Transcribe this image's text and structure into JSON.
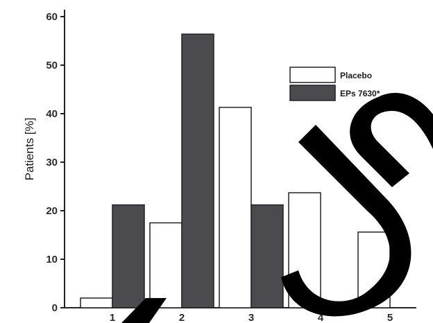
{
  "chart_data": {
    "type": "bar",
    "categories": [
      "1",
      "2",
      "3",
      "4",
      "5"
    ],
    "series": [
      {
        "name": "Placebo",
        "values": [
          2,
          17.5,
          41.3,
          23.7,
          15.6
        ],
        "color": "#ffffff"
      },
      {
        "name": "EPs 7630*",
        "values": [
          21.2,
          56.4,
          21.2,
          0.5,
          0
        ],
        "color": "#4a4a4f"
      }
    ],
    "ylabel": "Patients [%]",
    "xlabel": "",
    "ylim": [
      0,
      60
    ],
    "yticks": [
      "0",
      "10",
      "20",
      "30",
      "40",
      "50",
      "60"
    ],
    "grid": false,
    "legend_position": "top-right"
  },
  "watermark": {
    "color": "#000000",
    "text": "ed"
  }
}
